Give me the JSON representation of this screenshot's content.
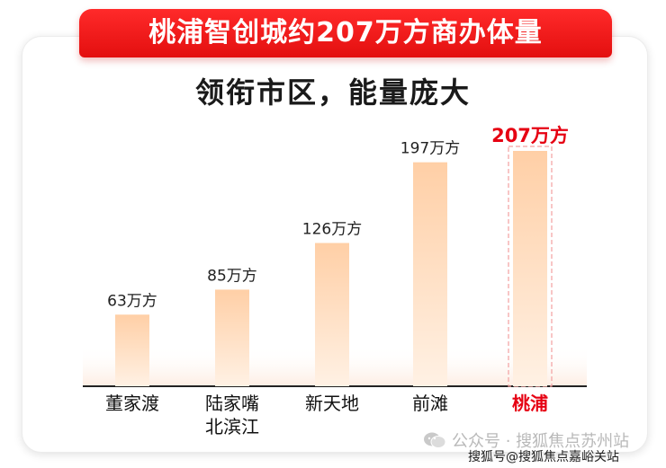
{
  "banner": {
    "title": "桃浦智创城约207万方商办体量"
  },
  "subtitle": "领衔市区，能量庞大",
  "watermark": {
    "account": "公众号 · 搜狐焦点苏州站",
    "source": "搜狐号@搜狐焦点嘉峪关站"
  },
  "colors": {
    "banner": "#e61b1b",
    "bar_top": "#ffcfa6",
    "bar_bottom": "#fff1e4",
    "highlight": "#e60012",
    "text": "#111111"
  },
  "icons": {
    "watermark": "wechat-icon"
  },
  "chart_data": {
    "type": "bar",
    "unit": "万方",
    "categories": [
      "董家渡",
      "陆家嘴\n北滨江",
      "新天地",
      "前滩",
      "桃浦"
    ],
    "values": [
      63,
      85,
      126,
      197,
      207
    ],
    "labels": [
      "63万方",
      "85万方",
      "126万方",
      "197万方",
      "207万方"
    ],
    "highlight_index": 4,
    "ylim": [
      0,
      207
    ],
    "grid": false,
    "legend": "none"
  }
}
